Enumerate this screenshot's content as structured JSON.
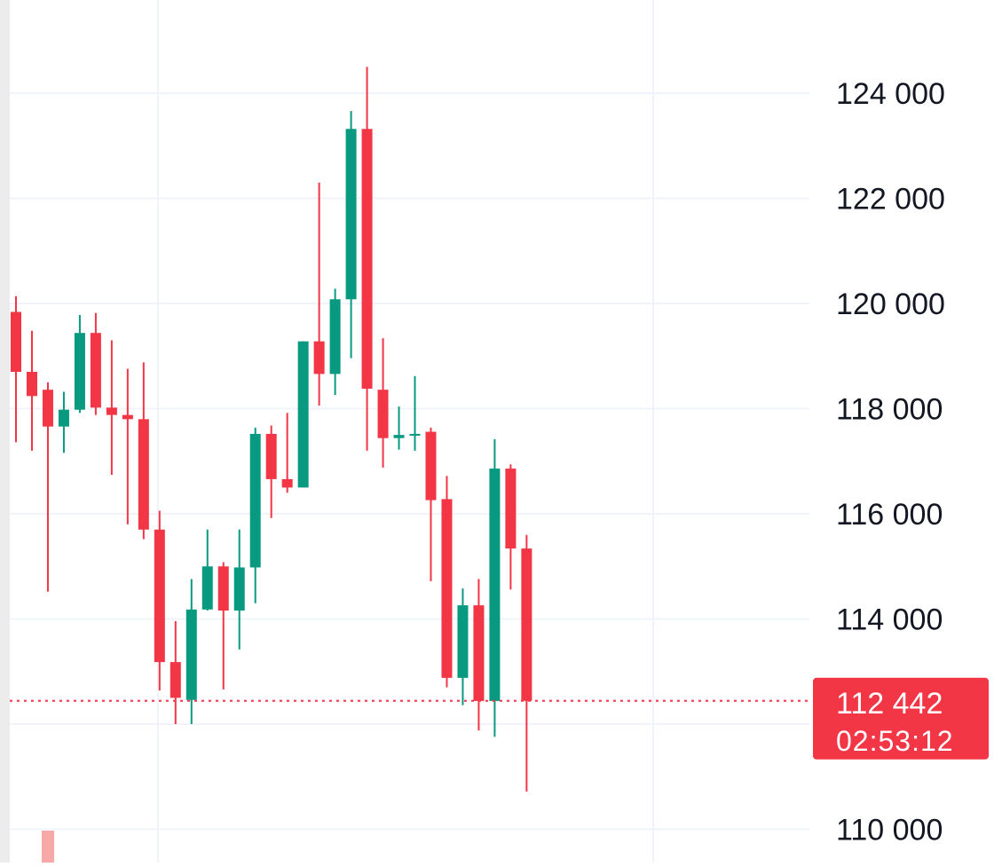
{
  "chart_data": {
    "type": "candlestick",
    "y_axis_labels": [
      "124 000",
      "122 000",
      "120 000",
      "118 000",
      "116 000",
      "114 000",
      "110 000"
    ],
    "ylim": [
      109400,
      125500
    ],
    "grid": true,
    "current_price": {
      "value": 112442,
      "label": "112 442",
      "countdown": "02:53:12"
    },
    "candles": [
      {
        "o": 119840,
        "h": 120140,
        "l": 117360,
        "c": 118700
      },
      {
        "o": 118700,
        "h": 119480,
        "l": 117200,
        "c": 118240
      },
      {
        "o": 118360,
        "h": 118500,
        "l": 114520,
        "c": 117660
      },
      {
        "o": 117660,
        "h": 118320,
        "l": 117160,
        "c": 117980
      },
      {
        "o": 117980,
        "h": 119780,
        "l": 117920,
        "c": 119440
      },
      {
        "o": 119440,
        "h": 119820,
        "l": 117880,
        "c": 118020
      },
      {
        "o": 118020,
        "h": 119300,
        "l": 116740,
        "c": 117880
      },
      {
        "o": 117880,
        "h": 118760,
        "l": 115800,
        "c": 117800
      },
      {
        "o": 117800,
        "h": 118880,
        "l": 115520,
        "c": 115700
      },
      {
        "o": 115700,
        "h": 116060,
        "l": 112640,
        "c": 113180
      },
      {
        "o": 113180,
        "h": 113960,
        "l": 112000,
        "c": 112500
      },
      {
        "o": 112460,
        "h": 114760,
        "l": 112000,
        "c": 114180
      },
      {
        "o": 114180,
        "h": 115700,
        "l": 114160,
        "c": 115000
      },
      {
        "o": 115000,
        "h": 115080,
        "l": 112660,
        "c": 114160
      },
      {
        "o": 114160,
        "h": 115700,
        "l": 113420,
        "c": 114980
      },
      {
        "o": 114980,
        "h": 117640,
        "l": 114300,
        "c": 117520
      },
      {
        "o": 117520,
        "h": 117680,
        "l": 115920,
        "c": 116660
      },
      {
        "o": 116660,
        "h": 117920,
        "l": 116400,
        "c": 116500
      },
      {
        "o": 116500,
        "h": 119280,
        "l": 116500,
        "c": 119280
      },
      {
        "o": 119280,
        "h": 122300,
        "l": 118060,
        "c": 118660
      },
      {
        "o": 118660,
        "h": 120280,
        "l": 118260,
        "c": 120080
      },
      {
        "o": 120080,
        "h": 123660,
        "l": 118960,
        "c": 123320
      },
      {
        "o": 123320,
        "h": 124500,
        "l": 117200,
        "c": 118380
      },
      {
        "o": 118360,
        "h": 119340,
        "l": 116880,
        "c": 117440
      },
      {
        "o": 117440,
        "h": 118040,
        "l": 117220,
        "c": 117500
      },
      {
        "o": 117500,
        "h": 118620,
        "l": 117200,
        "c": 117520
      },
      {
        "o": 117560,
        "h": 117640,
        "l": 114720,
        "c": 116260
      },
      {
        "o": 116280,
        "h": 116720,
        "l": 112700,
        "c": 112880
      },
      {
        "o": 112880,
        "h": 114580,
        "l": 112360,
        "c": 114260
      },
      {
        "o": 114260,
        "h": 114760,
        "l": 111880,
        "c": 112440
      },
      {
        "o": 112440,
        "h": 117420,
        "l": 111760,
        "c": 116860
      },
      {
        "o": 116860,
        "h": 116940,
        "l": 114560,
        "c": 115340
      },
      {
        "o": 115340,
        "h": 115600,
        "l": 110720,
        "c": 112442
      }
    ],
    "volume_bars": [
      {
        "index": 2,
        "level": 0.1
      }
    ],
    "colors": {
      "up": "#089981",
      "down": "#f23645",
      "volume_down": "#f7a9a7",
      "grid": "#f0f3fa",
      "text": "#131722",
      "price_line": "#f23645",
      "badge_bg": "#f23645",
      "badge_text": "#ffffff",
      "badge_subtext": "#fde3e5"
    }
  }
}
